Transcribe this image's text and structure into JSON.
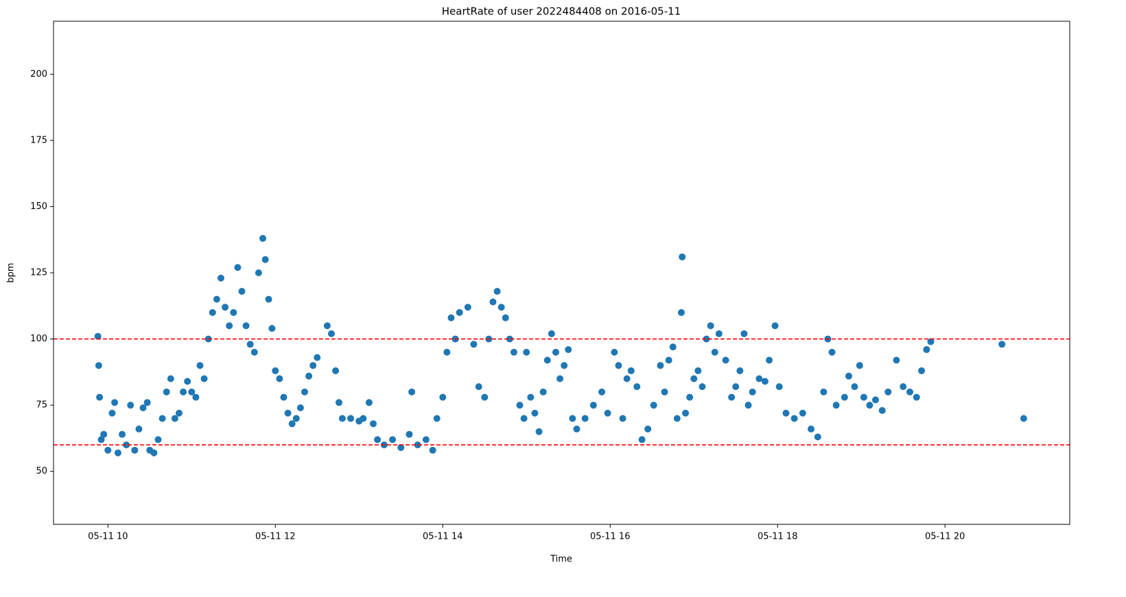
{
  "chart_data": {
    "type": "scatter",
    "title": "HeartRate of user 2022484408 on 2016-05-11",
    "x_label": "Time",
    "y_label": "bpm",
    "color": "#1f77b4",
    "xlim": [
      9.35,
      21.49
    ],
    "ylim": [
      30,
      220
    ],
    "xticks": [
      {
        "value": 10,
        "label": "05-11 10"
      },
      {
        "value": 12,
        "label": "05-11 12"
      },
      {
        "value": 14,
        "label": "05-11 14"
      },
      {
        "value": 16,
        "label": "05-11 16"
      },
      {
        "value": 18,
        "label": "05-11 18"
      },
      {
        "value": 20,
        "label": "05-11 20"
      }
    ],
    "yticks": [
      50,
      75,
      100,
      125,
      150,
      175,
      200
    ],
    "reference_lines": [
      {
        "value": 100,
        "color": "#ff0000"
      },
      {
        "value": 60,
        "color": "#ff0000"
      }
    ],
    "x": [
      9.88,
      9.89,
      9.9,
      9.92,
      9.95,
      10.0,
      10.05,
      10.08,
      10.12,
      10.17,
      10.22,
      10.27,
      10.32,
      10.37,
      10.42,
      10.47,
      10.5,
      10.55,
      10.6,
      10.65,
      10.7,
      10.75,
      10.8,
      10.85,
      10.9,
      10.95,
      11.0,
      11.05,
      11.1,
      11.15,
      11.2,
      11.25,
      11.3,
      11.35,
      11.4,
      11.45,
      11.5,
      11.55,
      11.6,
      11.65,
      11.7,
      11.75,
      11.8,
      11.85,
      11.88,
      11.92,
      11.96,
      12.0,
      12.05,
      12.1,
      12.15,
      12.2,
      12.25,
      12.3,
      12.35,
      12.4,
      12.45,
      12.5,
      12.62,
      12.67,
      12.72,
      12.76,
      12.8,
      12.9,
      13.0,
      13.05,
      13.12,
      13.17,
      13.22,
      13.3,
      13.4,
      13.5,
      13.6,
      13.63,
      13.7,
      13.8,
      13.88,
      13.93,
      14.0,
      14.05,
      14.1,
      14.15,
      14.2,
      14.3,
      14.37,
      14.43,
      14.5,
      14.55,
      14.6,
      14.65,
      14.7,
      14.75,
      14.8,
      14.85,
      14.92,
      14.97,
      15.0,
      15.05,
      15.1,
      15.15,
      15.2,
      15.25,
      15.3,
      15.35,
      15.4,
      15.45,
      15.5,
      15.55,
      15.6,
      15.7,
      15.8,
      15.9,
      15.97,
      16.05,
      16.1,
      16.15,
      16.2,
      16.25,
      16.32,
      16.38,
      16.45,
      16.52,
      16.6,
      16.65,
      16.7,
      16.75,
      16.8,
      16.85,
      16.86,
      16.9,
      16.95,
      17.0,
      17.05,
      17.1,
      17.15,
      17.2,
      17.25,
      17.3,
      17.38,
      17.45,
      17.5,
      17.55,
      17.6,
      17.65,
      17.7,
      17.78,
      17.85,
      17.9,
      17.97,
      18.02,
      18.1,
      18.2,
      18.3,
      18.4,
      18.48,
      18.55,
      18.6,
      18.65,
      18.7,
      18.8,
      18.85,
      18.92,
      18.98,
      19.03,
      19.1,
      19.17,
      19.25,
      19.32,
      19.42,
      19.5,
      19.58,
      19.66,
      19.72,
      19.78,
      19.83,
      20.68,
      20.94
    ],
    "values": [
      101,
      90,
      78,
      62,
      64,
      58,
      72,
      76,
      57,
      64,
      60,
      75,
      58,
      66,
      74,
      76,
      58,
      57,
      62,
      70,
      80,
      85,
      70,
      72,
      80,
      84,
      80,
      78,
      90,
      85,
      100,
      110,
      115,
      123,
      112,
      105,
      110,
      127,
      118,
      105,
      98,
      95,
      125,
      138,
      130,
      115,
      104,
      88,
      85,
      78,
      72,
      68,
      70,
      74,
      80,
      86,
      90,
      93,
      105,
      102,
      88,
      76,
      70,
      70,
      69,
      70,
      76,
      68,
      62,
      60,
      62,
      59,
      64,
      80,
      60,
      62,
      58,
      70,
      78,
      95,
      108,
      100,
      110,
      112,
      98,
      82,
      78,
      100,
      114,
      118,
      112,
      108,
      100,
      95,
      75,
      70,
      95,
      78,
      72,
      65,
      80,
      92,
      102,
      95,
      85,
      90,
      96,
      70,
      66,
      70,
      75,
      80,
      72,
      95,
      90,
      70,
      85,
      88,
      82,
      62,
      66,
      75,
      90,
      80,
      92,
      97,
      70,
      110,
      131,
      72,
      78,
      85,
      88,
      82,
      100,
      105,
      95,
      102,
      92,
      78,
      82,
      88,
      102,
      75,
      80,
      85,
      84,
      92,
      105,
      82,
      72,
      70,
      72,
      66,
      63,
      80,
      100,
      95,
      75,
      78,
      86,
      82,
      90,
      78,
      75,
      77,
      73,
      80,
      92,
      82,
      80,
      78,
      88,
      96,
      99,
      98,
      70
    ]
  }
}
